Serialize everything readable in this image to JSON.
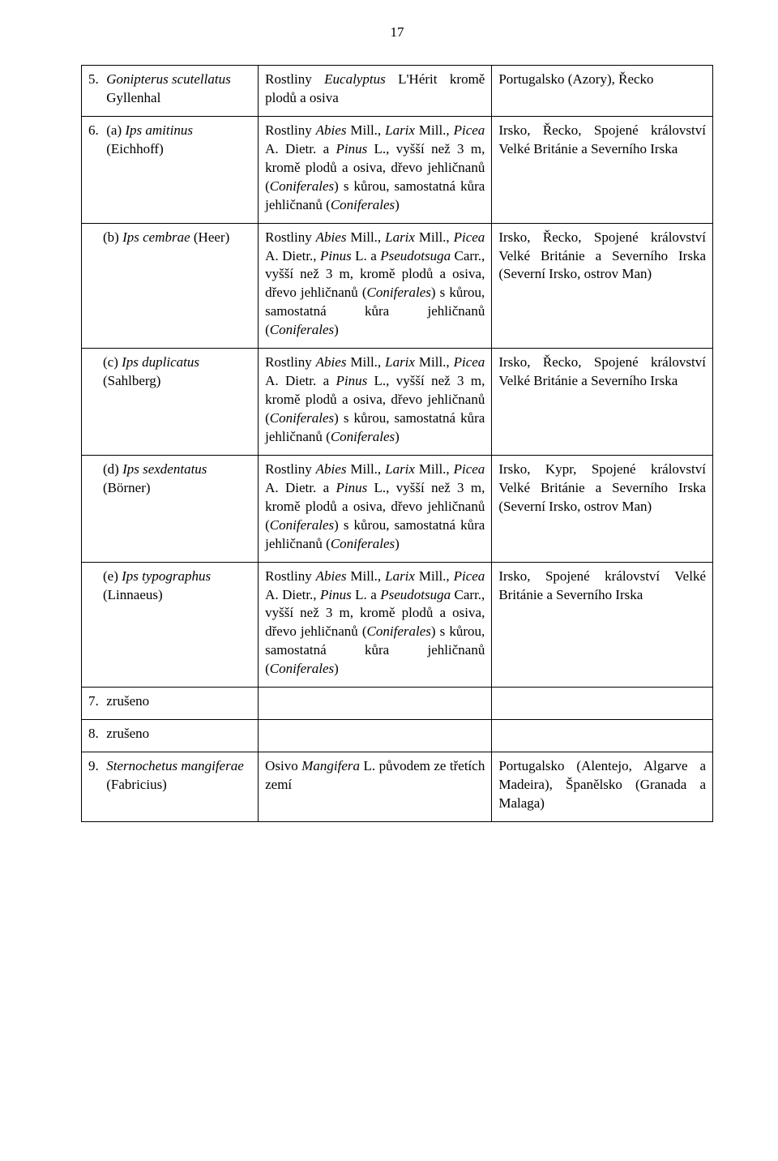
{
  "pageNumber": "17",
  "rows": [
    {
      "num": "5.",
      "c1": "<i>Gonipterus scutellatus</i> Gyllenhal",
      "c2": "Rostliny <i>Eucalyptus</i> L'Hérit kromě plodů a osiva",
      "c3": "Portugalsko (Azory), Řecko"
    },
    {
      "num": "6.",
      "c1": "(a) <i>Ips amitinus</i> (Eichhoff)",
      "c2": "Rostliny <i>Abies</i> Mill., <i>Larix</i> Mill., <i>Picea</i> A. Dietr. a <i>Pinus</i> L., vyšší než 3 m, kromě plodů a osiva, dřevo jehličnanů (<i>Coniferales</i>) s kůrou, samostatná kůra jehličnanů (<i>Coniferales</i>)",
      "c3": "Irsko, Řecko, Spojené království Velké Británie a Severního Irska"
    },
    {
      "sub": true,
      "c1": "(b) <i>Ips cembrae</i> (Heer)",
      "c2": "Rostliny <i>Abies</i> Mill., <i>Larix</i> Mill., <i>Picea</i> A. Dietr., <i>Pinus</i> L. a <i>Pseudotsuga</i> Carr., vyšší než 3 m, kromě plodů a osiva, dřevo jehličnanů (<i>Coniferales</i>) s kůrou, samostatná kůra jehličnanů (<i>Coniferales</i>)",
      "c3": "Irsko, Řecko, Spojené království Velké Británie a Severního Irska (Severní Irsko, ostrov Man)"
    },
    {
      "sub": true,
      "c1": "(c) <i>Ips duplicatus</i> (Sahlberg)",
      "c2": "Rostliny <i>Abies</i> Mill., <i>Larix</i> Mill., <i>Picea</i> A. Dietr. a <i>Pinus</i> L., vyšší než 3 m, kromě plodů a osiva, dřevo jehličnanů (<i>Coniferales</i>) s kůrou, samostatná kůra jehličnanů (<i>Coniferales</i>)",
      "c3": "Irsko, Řecko, Spojené království Velké Británie a Severního Irska"
    },
    {
      "sub": true,
      "c1": "(d) <i>Ips sexdentatus</i> (Börner)",
      "c2": "Rostliny <i>Abies</i> Mill., <i>Larix</i> Mill., <i>Picea</i> A. Dietr. a <i>Pinus</i> L., vyšší než 3 m, kromě plodů a osiva, dřevo jehličnanů (<i>Coniferales</i>) s kůrou, samostatná kůra jehličnanů (<i>Coniferales</i>)",
      "c3": "Irsko, Kypr, Spojené království Velké Británie a Severního Irska (Severní Irsko, ostrov Man)"
    },
    {
      "sub": true,
      "c1": "(e) <i>Ips typographus</i> (Linnaeus)",
      "c2": "Rostliny <i>Abies</i> Mill., <i>Larix</i> Mill., <i>Picea</i> A. Dietr., <i>Pinus</i> L. a <i>Pseudotsuga</i> Carr., vyšší než 3 m, kromě plodů a osiva, dřevo jehličnanů (<i>Coniferales</i>) s kůrou, samostatná kůra jehličnanů (<i>Coniferales</i>)",
      "c3": "Irsko, Spojené království Velké Británie a Severního Irska"
    },
    {
      "num": "7.",
      "c1": "zrušeno",
      "c2": "",
      "c3": ""
    },
    {
      "num": "8.",
      "c1": "zrušeno",
      "c2": "",
      "c3": ""
    },
    {
      "num": "9.",
      "c1": "<i>Sternochetus mangiferae</i> (Fabricius)",
      "c2": "Osivo <i>Mangifera</i> L. původem ze třetích zemí",
      "c3": "Portugalsko (Alentejo, Algarve a Madeira), Španělsko (Granada a Malaga)"
    }
  ]
}
